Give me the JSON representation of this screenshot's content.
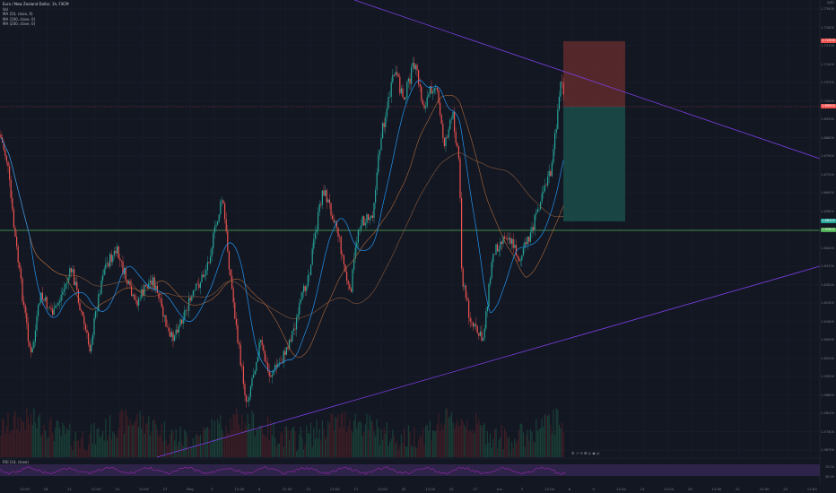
{
  "legend": {
    "symbol": "Euro / New Zealand Dollar, 1h, FXCM",
    "vol": "Vol",
    "ma1": "MA (50, close, 0)",
    "ma2": "MA (100, close, 0)",
    "ma3": "MA (200, close, 0)"
  },
  "currency": "NZD",
  "price_ticks": [
    "1.73500",
    "1.72800",
    "1.72100",
    "1.71400",
    "1.70700",
    "1.70000",
    "1.69300",
    "1.68600",
    "1.67900",
    "1.67200",
    "1.66500",
    "1.65800",
    "1.65100",
    "1.64400",
    "1.63700",
    "1.63000",
    "1.62300",
    "1.61600",
    "1.60900",
    "1.60200",
    "1.59500",
    "1.58800",
    "1.58100",
    "1.57400",
    "1.56700"
  ],
  "price_tags": {
    "target": "1.72500",
    "current": "1.69910",
    "stop": "1.68400",
    "level": "1.65800"
  },
  "time_ticks": [
    "12:00",
    "18",
    "21",
    "12:00",
    "24",
    "12:00",
    "27",
    "May",
    "3",
    "12:00",
    "8",
    "12:00",
    "13",
    "12:00",
    "17",
    "12:00",
    "20",
    "12:00",
    "25",
    "27",
    "Jun",
    "3",
    "12:00",
    "6",
    "9",
    "12:00",
    "14",
    "12:00",
    "16",
    "12:00",
    "21",
    "12:00",
    "25",
    "12:00"
  ],
  "rsi": {
    "label": "RSI (14, close)",
    "upper": "70.00",
    "lower": "30.00"
  },
  "tools_text": "⚙ ↗ ⟲ ⭙ ◎ ◉ ◎",
  "colors": {
    "bg": "#131722",
    "up": "#26a69a",
    "down": "#ef5350",
    "trend": "#7b3fe4",
    "level": "#4caf50",
    "ma50": "#2196f3",
    "ma100": "#9c5f3e",
    "ma200": "#9c5f3e",
    "stop_zone": "#5c2a2c",
    "target_zone": "#1b4a49"
  }
}
